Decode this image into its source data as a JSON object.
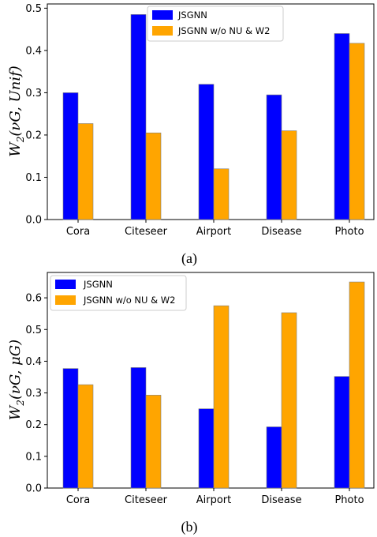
{
  "colors": {
    "jsgnn": "#0000ff",
    "ablation": "#ffa500",
    "edge": "#7f7f7f"
  },
  "chart_data": [
    {
      "type": "bar",
      "ylabel": "W2(νG, Unif)",
      "ylabel_main": "W",
      "ylabel_sub": "2",
      "ylabel_args": "(νG, Unif)",
      "categories": [
        "Cora",
        "Citeseer",
        "Airport",
        "Disease",
        "Photo"
      ],
      "series": [
        {
          "name": "JSGNN",
          "values": [
            0.3,
            0.485,
            0.32,
            0.295,
            0.44
          ]
        },
        {
          "name": "JSGNN w/o NU & W2",
          "values": [
            0.227,
            0.205,
            0.12,
            0.21,
            0.417
          ]
        }
      ],
      "ylim": [
        0,
        0.51
      ],
      "yticks": [
        0.0,
        0.1,
        0.2,
        0.3,
        0.4,
        0.5
      ],
      "ytick_labels": [
        "0.0",
        "0.1",
        "0.2",
        "0.3",
        "0.4",
        "0.5"
      ],
      "legend": {
        "placement": "top-center",
        "entries": [
          "JSGNN",
          "JSGNN w/o NU & W2"
        ]
      },
      "caption": "(a)",
      "grid": false
    },
    {
      "type": "bar",
      "ylabel": "W2(νG, μG)",
      "ylabel_main": "W",
      "ylabel_sub": "2",
      "ylabel_args": "(νG, μG)",
      "categories": [
        "Cora",
        "Citeseer",
        "Airport",
        "Disease",
        "Photo"
      ],
      "series": [
        {
          "name": "JSGNN",
          "values": [
            0.377,
            0.38,
            0.25,
            0.193,
            0.352
          ]
        },
        {
          "name": "JSGNN w/o NU & W2",
          "values": [
            0.326,
            0.293,
            0.575,
            0.553,
            0.65
          ]
        }
      ],
      "ylim": [
        0,
        0.68
      ],
      "yticks": [
        0.0,
        0.1,
        0.2,
        0.3,
        0.4,
        0.5,
        0.6
      ],
      "ytick_labels": [
        "0.0",
        "0.1",
        "0.2",
        "0.3",
        "0.4",
        "0.5",
        "0.6"
      ],
      "legend": {
        "placement": "top-left",
        "entries": [
          "JSGNN",
          "JSGNN w/o NU & W2"
        ]
      },
      "caption": "(b)",
      "grid": false
    }
  ]
}
